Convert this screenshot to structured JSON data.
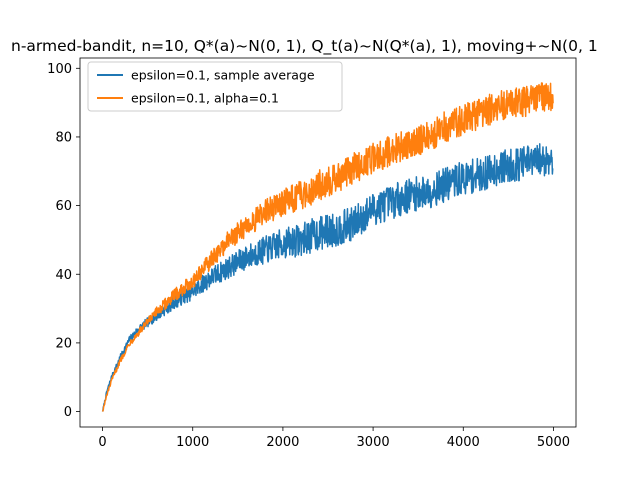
{
  "chart_data": {
    "type": "line",
    "title": "n-armed-bandit, n=10, Q*(a)~N(0, 1), Q_t(a)~N(Q*(a), 1), moving+~N(0, 1",
    "xlabel": "",
    "ylabel": "",
    "xlim": [
      -250,
      5250
    ],
    "ylim": [
      -4.5,
      103
    ],
    "x_ticks": [
      "0",
      "1000",
      "2000",
      "3000",
      "4000",
      "5000"
    ],
    "y_ticks": [
      "0",
      "20",
      "40",
      "60",
      "80",
      "100"
    ],
    "grid": false,
    "legend_position": "top-left",
    "series": [
      {
        "name": "epsilon=0.1, sample average",
        "color": "#1f77b4",
        "noise": 5,
        "x": [
          0,
          50,
          100,
          200,
          300,
          400,
          500,
          600,
          800,
          1000,
          1200,
          1400,
          1600,
          1800,
          2000,
          2200,
          2400,
          2600,
          2800,
          2900,
          3000,
          3200,
          3400,
          3600,
          3800,
          4000,
          4200,
          4400,
          4600,
          4800,
          4999
        ],
        "y": [
          0,
          6,
          10,
          16,
          21,
          24,
          26,
          28,
          32,
          35,
          39,
          42,
          45,
          47,
          49,
          50,
          52,
          53,
          55,
          57,
          59,
          61,
          63,
          64,
          66,
          68,
          69,
          71,
          72,
          73,
          74
        ]
      },
      {
        "name": "epsilon=0.1, alpha=0.1",
        "color": "#ff7f0e",
        "noise": 4.5,
        "x": [
          0,
          50,
          100,
          200,
          300,
          400,
          500,
          600,
          800,
          1000,
          1200,
          1400,
          1600,
          1800,
          2000,
          2200,
          2400,
          2600,
          2800,
          3000,
          3200,
          3400,
          3600,
          3800,
          4000,
          4200,
          4400,
          4600,
          4800,
          4999
        ],
        "y": [
          0,
          5,
          9,
          15,
          20,
          23,
          26,
          29,
          34,
          38,
          44,
          50,
          54,
          58,
          61,
          63,
          66,
          68,
          71,
          74,
          76,
          78,
          80,
          83,
          85,
          87,
          89,
          90,
          91,
          92
        ]
      }
    ]
  }
}
